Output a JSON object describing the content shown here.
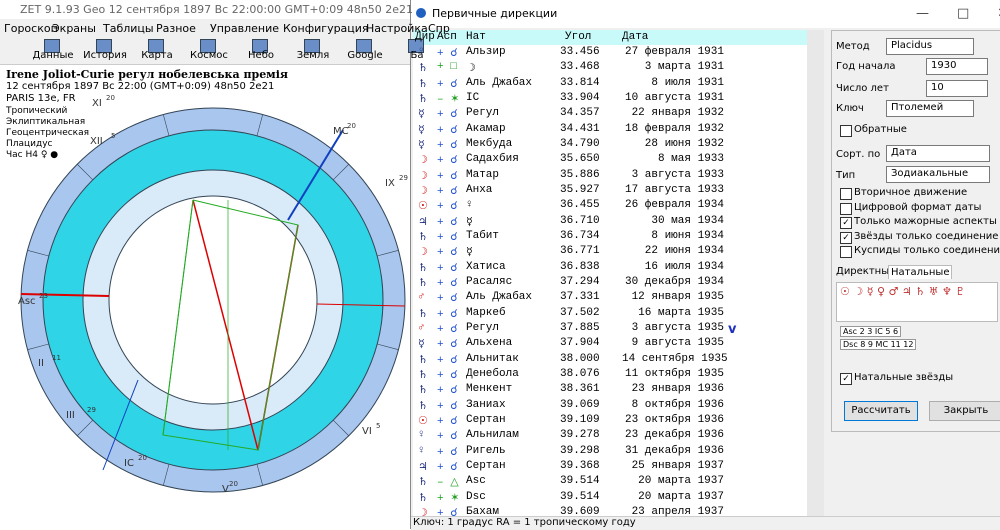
{
  "main": {
    "title": "ZET 9.1.93 Geo   12 сентября 1897  Вс  22:00:00 GMT+0:09 48n50  2e21",
    "menu": [
      "Гороскоп",
      "Экраны",
      "Таблицы",
      "Разное",
      "Управление",
      "Конфигурация",
      "Настройка",
      "Спр"
    ],
    "toolbar": [
      "Данные",
      "История",
      "Карта",
      "Космос",
      "Небо",
      "Земля",
      "Google",
      "Ба"
    ],
    "info": {
      "name": "Irene Joliot-Curie регул нобелевська премія",
      "date": "12 сентября 1897  Вс  22:00 (GMT+0:09) 48n50  2e21",
      "place": "PARIS 13e, FR",
      "settings": [
        "Тропический",
        "Эклиптикальная",
        "Геоцентрическая",
        "Плацидус",
        "Час Н4 ♀ ●"
      ]
    },
    "wheel_labels": [
      {
        "house": "XI",
        "degree": "20"
      },
      {
        "house": "MC",
        "degree": "20"
      },
      {
        "house": "XII",
        "degree": "5"
      },
      {
        "house": "IX",
        "degree": "29"
      },
      {
        "house": "Asc",
        "degree": "23"
      },
      {
        "house": "II",
        "degree": "11"
      },
      {
        "house": "III",
        "degree": "29"
      },
      {
        "house": "IC",
        "degree": "20"
      },
      {
        "house": "V",
        "degree": "20"
      },
      {
        "house": "VI",
        "degree": "5"
      }
    ]
  },
  "dialog": {
    "title": "Первичные дирекции",
    "headers": [
      "Дир",
      "Асп",
      "Нат",
      "Угол",
      "Дата"
    ],
    "rows": [
      [
        "♀",
        "+ ☌",
        "Альзир",
        "33.456",
        "27 февраля 1931"
      ],
      [
        "♄",
        "+ □",
        "☽",
        "33.468",
        "3 марта 1931"
      ],
      [
        "♄",
        "+ ☌",
        "Аль Джабах",
        "33.814",
        "8 июля 1931"
      ],
      [
        "♄",
        "– ✶",
        "IC",
        "33.904",
        "10 августа 1931"
      ],
      [
        "☿",
        "+ ☌",
        "Регул",
        "34.357",
        "22 января 1932"
      ],
      [
        "☿",
        "+ ☌",
        "Акамар",
        "34.431",
        "18 февраля 1932"
      ],
      [
        "☿",
        "+ ☌",
        "Мекбуда",
        "34.790",
        "28 июня 1932"
      ],
      [
        "☽",
        "+ ☌",
        "Садахбия",
        "35.650",
        "8 мая 1933"
      ],
      [
        "☽",
        "+ ☌",
        "Матар",
        "35.886",
        "3 августа 1933"
      ],
      [
        "☽",
        "+ ☌",
        "Анха",
        "35.927",
        "17 августа 1933"
      ],
      [
        "☉",
        "+ ☌",
        "♀",
        "36.455",
        "26 февраля 1934"
      ],
      [
        "♃",
        "+ ☌",
        "☿",
        "36.710",
        "30 мая 1934"
      ],
      [
        "♄",
        "+ ☌",
        "Табит",
        "36.734",
        "8 июня 1934"
      ],
      [
        "☽",
        "+ ☌",
        "☿",
        "36.771",
        "22 июня 1934"
      ],
      [
        "♄",
        "+ ☌",
        "Хатиса",
        "36.838",
        "16 июля 1934"
      ],
      [
        "♄",
        "+ ☌",
        "Расаляс",
        "37.294",
        "30 декабря 1934"
      ],
      [
        "♂",
        "+ ☌",
        "Аль Джабах",
        "37.331",
        "12 января 1935"
      ],
      [
        "♄",
        "+ ☌",
        "Маркеб",
        "37.502",
        "16 марта 1935"
      ],
      [
        "♂",
        "+ ☌",
        "Регул",
        "37.885",
        "3 августа 1935"
      ],
      [
        "☿",
        "+ ☌",
        "Альхена",
        "37.904",
        "9 августа 1935"
      ],
      [
        "♄",
        "+ ☌",
        "Альнитак",
        "38.000",
        "14 сентября 1935"
      ],
      [
        "♄",
        "+ ☌",
        "Денебола",
        "38.076",
        "11 октября 1935"
      ],
      [
        "♄",
        "+ ☌",
        "Менкент",
        "38.361",
        "23 января 1936"
      ],
      [
        "♄",
        "+ ☌",
        "Заниах",
        "39.069",
        "8 октября 1936"
      ],
      [
        "☉",
        "+ ☌",
        "Сертан",
        "39.109",
        "23 октября 1936"
      ],
      [
        "♀",
        "+ ☌",
        "Альнилам",
        "39.278",
        "23 декабря 1936"
      ],
      [
        "♀",
        "+ ☌",
        "Ригель",
        "39.298",
        "31 декабря 1936"
      ],
      [
        "♃",
        "+ ☌",
        "Сертан",
        "39.368",
        "25 января 1937"
      ],
      [
        "♄",
        "– △",
        "Asc",
        "39.514",
        "20 марта 1937"
      ],
      [
        "♄",
        "+ ✶",
        "Dsc",
        "39.514",
        "20 марта 1937"
      ],
      [
        "☽",
        "+ ☌",
        "Бахам",
        "39.609",
        "23 апреля 1937"
      ]
    ],
    "annotation": "v",
    "status": "Ключ: 1 градус RA = 1 тропическому году",
    "panel": {
      "fields": [
        {
          "label": "Метод",
          "value": "Placidus"
        },
        {
          "label": "Год начала",
          "value": "1930"
        },
        {
          "label": "Число лет",
          "value": "10"
        },
        {
          "label": "Ключ",
          "value": "Птолемей"
        }
      ],
      "reverse": {
        "label": "Обратные",
        "checked": false
      },
      "sort": {
        "label": "Сорт. по",
        "value": "Дата"
      },
      "kind": {
        "label": "Тип",
        "value": "Зодиакальные"
      },
      "options": [
        {
          "label": "Вторичное движение",
          "checked": false
        },
        {
          "label": "Цифровой формат даты",
          "checked": false
        },
        {
          "label": "Только мажорные аспекты",
          "checked": true
        },
        {
          "label": "Звёзды только соединение",
          "checked": true
        },
        {
          "label": "Куспиды только соединения",
          "checked": false
        }
      ],
      "tabs": [
        "Директные",
        "Натальные"
      ],
      "planets": "☉ ☽ ☿ ♀ ♂ ♃ ♄ ♅ ♆ ♇",
      "cusps": [
        "Asc 2 3 IC 5 6",
        "Dsc 8 9 MC 11 12"
      ],
      "natal_stars": {
        "label": "Натальные звёзды",
        "checked": true
      },
      "buttons": [
        "Рассчитать",
        "Закрыть"
      ]
    }
  }
}
